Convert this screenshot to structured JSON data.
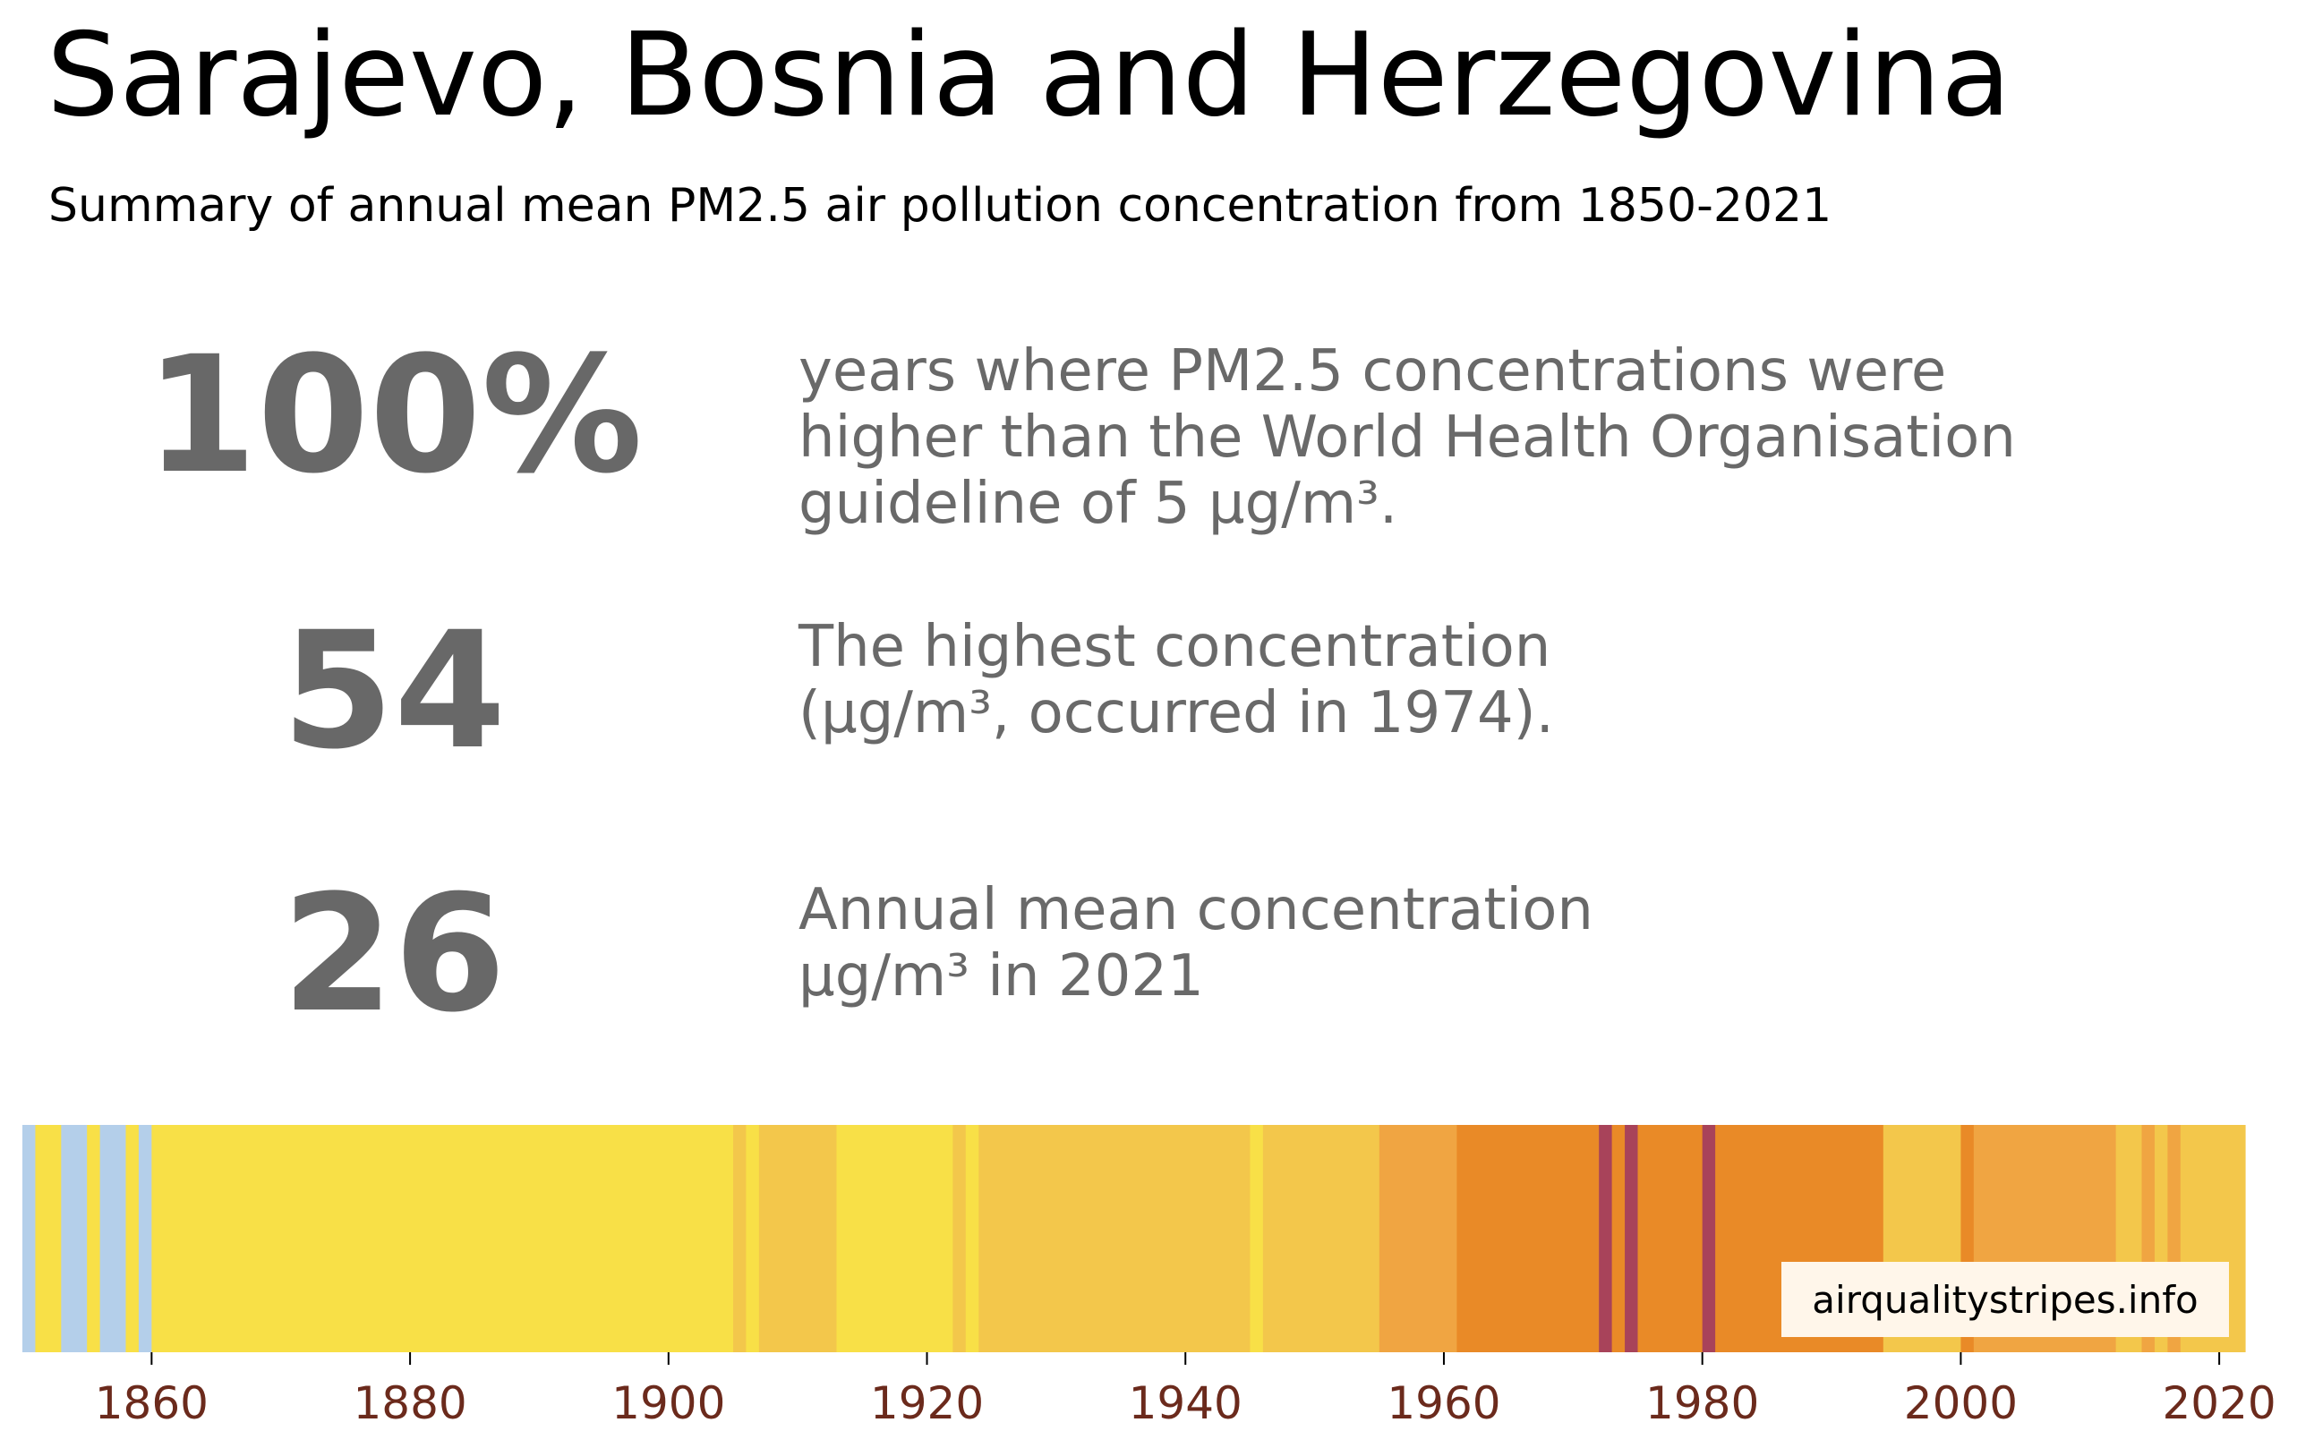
{
  "title": "Sarajevo, Bosnia and Herzegovina",
  "subtitle": "Summary of annual mean PM2.5 air pollution concentration from 1850-2021",
  "stats": [
    {
      "value": "100%",
      "lines": [
        "years where PM2.5 concentrations were",
        "higher than the World Health Organisation",
        "guideline of 5 μg/m³."
      ]
    },
    {
      "value": "54",
      "lines": [
        "The highest concentration",
        "(μg/m³, occurred in 1974)."
      ]
    },
    {
      "value": "26",
      "lines": [
        "Annual mean concentration",
        "μg/m³ in 2021"
      ]
    }
  ],
  "watermark": "airqualitystripes.info",
  "colors": {
    "light_blue": "#b4cfea",
    "yellow": "#f8e047",
    "light_orange": "#f3c74b",
    "orange": "#f0a542",
    "dark_orange": "#e98a27",
    "purple": "#a8435a",
    "tick_label": "#6b2a1c"
  },
  "chart_data": {
    "type": "heatmap",
    "title": "",
    "xlabel": "",
    "ylabel": "",
    "xlim": [
      1850,
      2022
    ],
    "x_ticks": [
      1860,
      1880,
      1900,
      1920,
      1940,
      1960,
      1980,
      2000,
      2020
    ],
    "color_levels": [
      "light_blue",
      "yellow",
      "light_orange",
      "orange",
      "dark_orange",
      "purple"
    ],
    "segments": [
      {
        "start": 1850,
        "end": 1851,
        "level": "light_blue"
      },
      {
        "start": 1851,
        "end": 1853,
        "level": "yellow"
      },
      {
        "start": 1853,
        "end": 1855,
        "level": "light_blue"
      },
      {
        "start": 1855,
        "end": 1856,
        "level": "yellow"
      },
      {
        "start": 1856,
        "end": 1858,
        "level": "light_blue"
      },
      {
        "start": 1858,
        "end": 1859,
        "level": "yellow"
      },
      {
        "start": 1859,
        "end": 1860,
        "level": "light_blue"
      },
      {
        "start": 1860,
        "end": 1905,
        "level": "yellow"
      },
      {
        "start": 1905,
        "end": 1906,
        "level": "light_orange"
      },
      {
        "start": 1906,
        "end": 1907,
        "level": "yellow"
      },
      {
        "start": 1907,
        "end": 1913,
        "level": "light_orange"
      },
      {
        "start": 1913,
        "end": 1922,
        "level": "yellow"
      },
      {
        "start": 1922,
        "end": 1923,
        "level": "light_orange"
      },
      {
        "start": 1923,
        "end": 1924,
        "level": "yellow"
      },
      {
        "start": 1924,
        "end": 1945,
        "level": "light_orange"
      },
      {
        "start": 1945,
        "end": 1946,
        "level": "yellow"
      },
      {
        "start": 1946,
        "end": 1955,
        "level": "light_orange"
      },
      {
        "start": 1955,
        "end": 1961,
        "level": "orange"
      },
      {
        "start": 1961,
        "end": 1972,
        "level": "dark_orange"
      },
      {
        "start": 1972,
        "end": 1973,
        "level": "purple"
      },
      {
        "start": 1973,
        "end": 1974,
        "level": "dark_orange"
      },
      {
        "start": 1974,
        "end": 1975,
        "level": "purple"
      },
      {
        "start": 1975,
        "end": 1980,
        "level": "dark_orange"
      },
      {
        "start": 1980,
        "end": 1981,
        "level": "purple"
      },
      {
        "start": 1981,
        "end": 1994,
        "level": "dark_orange"
      },
      {
        "start": 1994,
        "end": 2000,
        "level": "light_orange"
      },
      {
        "start": 2000,
        "end": 2001,
        "level": "dark_orange"
      },
      {
        "start": 2001,
        "end": 2012,
        "level": "orange"
      },
      {
        "start": 2012,
        "end": 2014,
        "level": "light_orange"
      },
      {
        "start": 2014,
        "end": 2015,
        "level": "orange"
      },
      {
        "start": 2015,
        "end": 2016,
        "level": "light_orange"
      },
      {
        "start": 2016,
        "end": 2017,
        "level": "orange"
      },
      {
        "start": 2017,
        "end": 2022,
        "level": "light_orange"
      }
    ]
  }
}
